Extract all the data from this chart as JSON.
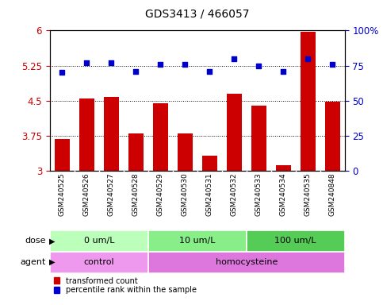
{
  "title": "GDS3413 / 466057",
  "samples": [
    "GSM240525",
    "GSM240526",
    "GSM240527",
    "GSM240528",
    "GSM240529",
    "GSM240530",
    "GSM240531",
    "GSM240532",
    "GSM240533",
    "GSM240534",
    "GSM240535",
    "GSM240848"
  ],
  "transformed_count": [
    3.68,
    4.55,
    4.58,
    3.8,
    4.44,
    3.8,
    3.32,
    4.65,
    4.4,
    3.12,
    5.98,
    4.47
  ],
  "percentile_rank": [
    70,
    77,
    77,
    71,
    76,
    76,
    71,
    80,
    75,
    71,
    80,
    76
  ],
  "ylim_left": [
    3,
    6
  ],
  "ylim_right": [
    0,
    100
  ],
  "yticks_left": [
    3,
    3.75,
    4.5,
    5.25,
    6
  ],
  "yticks_right": [
    0,
    25,
    50,
    75,
    100
  ],
  "ytick_labels_left": [
    "3",
    "3.75",
    "4.5",
    "5.25",
    "6"
  ],
  "ytick_labels_right": [
    "0",
    "25",
    "50",
    "75",
    "100%"
  ],
  "hlines": [
    3.75,
    4.5,
    5.25
  ],
  "bar_color": "#cc0000",
  "dot_color": "#0000cc",
  "bar_width": 0.6,
  "dose_groups": [
    {
      "label": "0 um/L",
      "start": 0,
      "end": 4,
      "color": "#bbffbb"
    },
    {
      "label": "10 um/L",
      "start": 4,
      "end": 8,
      "color": "#88ee88"
    },
    {
      "label": "100 um/L",
      "start": 8,
      "end": 12,
      "color": "#55cc55"
    }
  ],
  "agent_groups": [
    {
      "label": "control",
      "start": 0,
      "end": 4,
      "color": "#ee99ee"
    },
    {
      "label": "homocysteine",
      "start": 4,
      "end": 12,
      "color": "#dd77dd"
    }
  ],
  "dose_label": "dose",
  "agent_label": "agent",
  "legend_items": [
    {
      "label": "transformed count",
      "color": "#cc0000"
    },
    {
      "label": "percentile rank within the sample",
      "color": "#0000cc"
    }
  ],
  "sample_bg_color": "#cccccc",
  "sample_sep_color": "#ffffff",
  "plot_bg_color": "#ffffff",
  "fig_bg_color": "#ffffff",
  "title_fontsize": 10,
  "tick_fontsize": 8.5,
  "sample_fontsize": 6.5,
  "row_fontsize": 8,
  "legend_fontsize": 7
}
